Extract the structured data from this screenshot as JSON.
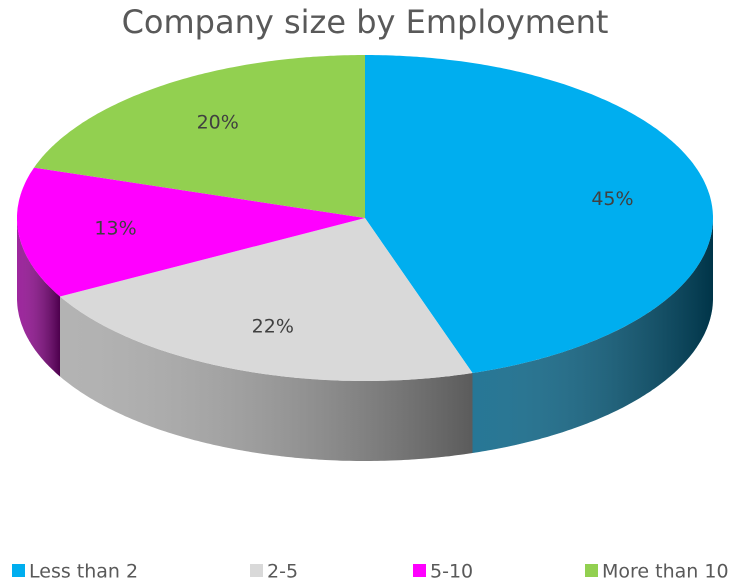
{
  "chart_data": {
    "type": "pie",
    "title": "Company size by Employment",
    "categories": [
      "Less than 2",
      "2-5",
      "5-10",
      "More than 10"
    ],
    "values": [
      45,
      22,
      13,
      20
    ],
    "value_labels": [
      "45%",
      "22%",
      "13%",
      "20%"
    ],
    "colors": [
      "#00aeef",
      "#d9d9d9",
      "#ff00ff",
      "#92d050"
    ],
    "legend": "bottom"
  }
}
